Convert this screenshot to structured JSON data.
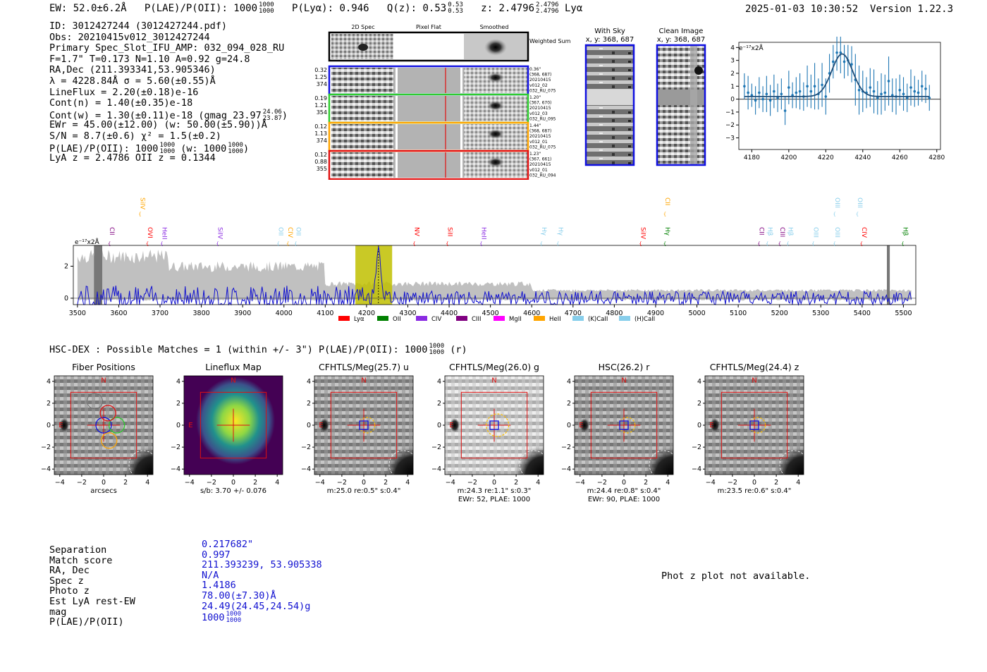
{
  "header": {
    "ew": "EW: 52.0±6.2Å",
    "plae_label": "P(LAE)/P(OII): 1000",
    "plae_hi": "1000",
    "plae_lo": "1000",
    "plya": "P(Lyα): 0.946",
    "qz_label": "Q(z): 0.53",
    "qz_hi": "0.53",
    "qz_lo": "0.53",
    "z_label": "z: 2.4796",
    "z_hi": "2.4796",
    "z_lo": "2.4796",
    "line_name": "Lyα",
    "timestamp": "2025-01-03 10:30:52",
    "version": "Version 1.22.3"
  },
  "info": {
    "lines": [
      "ID: 3012427244 (3012427244.pdf)",
      "Obs: 20210415v012_3012427244",
      "Primary Spec_Slot_IFU_AMP: 032_094_028_RU",
      "F=1.7\"  T=0.173  N=1.10  A=0.92  g=24.8",
      "RA,Dec (211.393341,53.905346)",
      "λ = 4228.84Å  σ = 5.60(±0.55)Å",
      "LineFlux = 2.20(±0.18)e-16",
      "Cont(n) = 1.40(±0.35)e-18",
      "Cont(w) = 1.30(±0.11)e-18 (gmag 23.97",
      "EWr = 45.00(±12.00) (w: 50.00(±5.90))Å",
      "S/N = 8.7(±0.6)  χ² = 1.5(±0.2)",
      "P(LAE)/P(OII): 1000",
      "LyA z = 2.4786  OII z = 0.1344"
    ],
    "gmag_hi": "24.06",
    "gmag_lo": "23.87",
    "plae_hi": "1000",
    "plae_lo": "1000",
    "plae_w": "(w: 1000",
    "plae_w_hi": "1000",
    "plae_w_lo": "1000",
    "plae_w_close": ")"
  },
  "cutouts": {
    "col_headers": [
      "2D Spec",
      "Pixel Flat",
      "Smoothed"
    ],
    "weighted_sum_label": "Weighted Sum",
    "rows": [
      {
        "left": [
          "0.32",
          "1.25",
          "374"
        ],
        "right": [
          "0.36\"",
          "(368, 687)",
          "20210415",
          "v012_02",
          "032_RU_075"
        ],
        "color": "#1010e0"
      },
      {
        "left": [
          "0.19",
          "1.21",
          "354"
        ],
        "right": [
          "1.20\"",
          "(367, 670)",
          "20210415",
          "v012_03",
          "032_RU_095"
        ],
        "color": "#2ecc2e"
      },
      {
        "left": [
          "0.12",
          "1.13",
          "374"
        ],
        "right": [
          "1.44\"",
          "(368, 687)",
          "20210415",
          "v012_01",
          "032_RU_075"
        ],
        "color": "#ffa500"
      },
      {
        "left": [
          "0.12",
          "0.88",
          "355"
        ],
        "right": [
          "1.23\"",
          "(367, 661)",
          "20210415",
          "v012_01",
          "032_RU_094"
        ],
        "color": "#e01010"
      }
    ]
  },
  "sky_panels": {
    "with_sky_title": "With Sky",
    "with_sky_coords": "x, y: 368, 687",
    "clean_title": "Clean Image",
    "clean_coords": "x, y: 368, 687"
  },
  "chart_data": [
    {
      "type": "line",
      "title": "",
      "ylabel": "e⁻¹⁷x2Å",
      "xlim": [
        4173,
        4282
      ],
      "ylim": [
        -3.9,
        4.4
      ],
      "x_ticks": [
        4180,
        4200,
        4220,
        4240,
        4260,
        4280
      ],
      "y_ticks": [
        -3,
        -2,
        -1,
        0,
        1,
        2,
        3,
        4
      ],
      "fit_model": {
        "type": "gaussian",
        "center": 4228.84,
        "sigma": 5.6,
        "amplitude": 3.3,
        "baseline": 0.2
      },
      "x": [
        4176,
        4178,
        4180,
        4182,
        4184,
        4186,
        4188,
        4190,
        4192,
        4194,
        4196,
        4198,
        4200,
        4202,
        4204,
        4206,
        4208,
        4210,
        4212,
        4214,
        4216,
        4218,
        4220,
        4222,
        4224,
        4226,
        4228,
        4230,
        4232,
        4234,
        4236,
        4238,
        4240,
        4242,
        4244,
        4246,
        4248,
        4250,
        4252,
        4254,
        4256,
        4258,
        4260,
        4262,
        4264,
        4266,
        4268,
        4270,
        4272,
        4274,
        4276
      ],
      "y": [
        1.0,
        0.5,
        0.3,
        -0.1,
        0.5,
        0.0,
        0.4,
        -0.1,
        0.6,
        0.1,
        0.4,
        -0.9,
        0.9,
        0.3,
        0.5,
        0.6,
        0.2,
        1.0,
        0.6,
        1.0,
        0.4,
        1.1,
        0.2,
        2.0,
        2.9,
        3.6,
        3.6,
        2.9,
        3.0,
        2.7,
        1.5,
        0.7,
        0.6,
        0.5,
        0.9,
        0.6,
        0.1,
        0.4,
        0.5,
        1.4,
        0.3,
        0.2,
        0.7,
        0.4,
        0.1,
        0.9,
        0.6,
        0.5,
        1.0,
        0.8,
        0.1
      ],
      "yerr": [
        1.0,
        1.3,
        0.9,
        1.1,
        1.2,
        1.0,
        1.4,
        1.2,
        1.3,
        1.1,
        1.2,
        1.1,
        1.3,
        1.0,
        1.2,
        1.4,
        1.1,
        1.6,
        1.3,
        1.8,
        1.2,
        1.7,
        1.4,
        1.5,
        1.3,
        1.4,
        1.6,
        1.3,
        1.2,
        1.4,
        2.0,
        1.9,
        1.6,
        1.2,
        1.5,
        1.7,
        1.3,
        1.6,
        1.4,
        1.9,
        1.3,
        1.4,
        1.2,
        1.3,
        1.1,
        1.4,
        1.2,
        1.0,
        1.2,
        1.1,
        1.0
      ]
    },
    {
      "type": "line",
      "title": "",
      "ylabel": "e⁻¹⁷x2Å",
      "xlim": [
        3490,
        5530
      ],
      "ylim": [
        -0.4,
        3.3
      ],
      "x_ticks": [
        3500,
        3600,
        3700,
        3800,
        3900,
        4000,
        4100,
        4200,
        4300,
        4400,
        4500,
        4600,
        4700,
        4800,
        4900,
        5000,
        5100,
        5200,
        5300,
        5400,
        5500
      ],
      "y_ticks": [
        0,
        2
      ],
      "highlight_range": [
        4173,
        4262
      ],
      "line_center": 4228.84,
      "line_labels": [
        {
          "text": "CII",
          "x": 3579,
          "row": "low",
          "color": "#800080"
        },
        {
          "text": "SiIV",
          "x": 3653,
          "row": "high",
          "color": "#ffa500"
        },
        {
          "text": "OVI",
          "x": 3671,
          "row": "low",
          "color": "#ff0000"
        },
        {
          "text": "HeII",
          "x": 3706,
          "row": "low",
          "color": "#8a2be2"
        },
        {
          "text": "SiIV",
          "x": 3841,
          "row": "low",
          "color": "#8a2be2"
        },
        {
          "text": "OII",
          "x": 3988,
          "row": "low",
          "color": "#87ceeb"
        },
        {
          "text": "CIV",
          "x": 4011,
          "row": "low",
          "color": "#ffa500"
        },
        {
          "text": "OII",
          "x": 4030,
          "row": "low",
          "color": "#87ceeb"
        },
        {
          "text": "NV",
          "x": 4317,
          "row": "low",
          "color": "#ff0000"
        },
        {
          "text": "SiII",
          "x": 4397,
          "row": "low",
          "color": "#ff0000"
        },
        {
          "text": "HeII",
          "x": 4479,
          "row": "low",
          "color": "#8a2be2"
        },
        {
          "text": "Hγ",
          "x": 4625,
          "row": "low",
          "color": "#87ceeb"
        },
        {
          "text": "Hγ",
          "x": 4665,
          "row": "low",
          "color": "#87ceeb"
        },
        {
          "text": "SiIV",
          "x": 4865,
          "row": "low",
          "color": "#ff0000"
        },
        {
          "text": "CII",
          "x": 4924,
          "row": "high",
          "color": "#ffa500"
        },
        {
          "text": "Hγ",
          "x": 4924,
          "row": "low",
          "color": "#008000"
        },
        {
          "text": "CII",
          "x": 5152,
          "row": "low",
          "color": "#800080"
        },
        {
          "text": "Hβ",
          "x": 5172,
          "row": "low",
          "color": "#87ceeb"
        },
        {
          "text": "CIII",
          "x": 5202,
          "row": "low",
          "color": "#800080"
        },
        {
          "text": "Hβ",
          "x": 5222,
          "row": "low",
          "color": "#87ceeb"
        },
        {
          "text": "OIII",
          "x": 5283,
          "row": "low",
          "color": "#87ceeb"
        },
        {
          "text": "OIII",
          "x": 5335,
          "row": "high",
          "color": "#87ceeb"
        },
        {
          "text": "OIII",
          "x": 5335,
          "row": "low",
          "color": "#87ceeb"
        },
        {
          "text": "OIII",
          "x": 5390,
          "row": "high",
          "color": "#87ceeb"
        },
        {
          "text": "CIV",
          "x": 5400,
          "row": "low",
          "color": "#ff0000"
        },
        {
          "text": "Hβ",
          "x": 5500,
          "row": "low",
          "color": "#008000"
        }
      ],
      "legend": [
        {
          "label": "Lyα",
          "color": "#ff0000"
        },
        {
          "label": "OII",
          "color": "#008000"
        },
        {
          "label": "CIV",
          "color": "#8a2be2"
        },
        {
          "label": "CIII",
          "color": "#800080"
        },
        {
          "label": "MgII",
          "color": "#ff00ff"
        },
        {
          "label": "HeII",
          "color": "#ffa500"
        },
        {
          "label": "(K)CaII",
          "color": "#87ceeb"
        },
        {
          "label": "(H)CaII",
          "color": "#87ceeb"
        }
      ]
    }
  ],
  "hsc": {
    "title": "HSC-DEX : Possible Matches = 1 (within +/- 3\")  P(LAE)/P(OII): 1000",
    "plae_hi": "1000",
    "plae_lo": "1000",
    "title_suffix": "(r)",
    "panels": [
      {
        "title": "Fiber Positions",
        "cap1": "arcsecs",
        "cap2": ""
      },
      {
        "title": "Lineflux Map",
        "cap1": "s/b: 3.70 +/- 0.076",
        "cap2": ""
      },
      {
        "title": "CFHTLS/Meg(25.7) u",
        "cap1": "m:25.0  re:0.5\"  s:0.4\"",
        "cap2": ""
      },
      {
        "title": "CFHTLS/Meg(26.0) g",
        "cap1": "m:24.3  re:1.1\"  s:0.3\"",
        "cap2": "EWr: 52, PLAE: 1000"
      },
      {
        "title": "HSC(26.2) r",
        "cap1": "m:24.4  re:0.8\"  s:0.4\"",
        "cap2": "EWr: 90, PLAE: 1000"
      },
      {
        "title": "CFHTLS/Meg(24.4) z",
        "cap1": "m:23.5  re:0.6\"  s:0.4\"",
        "cap2": ""
      }
    ],
    "ticks": [
      "−4",
      "−2",
      "0",
      "2",
      "4"
    ],
    "north": "N",
    "east": "E"
  },
  "match": {
    "labels": [
      "Separation",
      "Match score",
      "RA, Dec",
      "Spec z",
      "Photo z",
      "Est LyA rest-EW",
      "mag",
      "P(LAE)/P(OII)"
    ],
    "values": [
      "0.217682\"",
      "0.997",
      "211.393239, 53.905338",
      "N/A",
      "1.4186",
      "78.00(±7.30)Å",
      "24.49(24.45,24.54)g",
      "1000"
    ],
    "plae_hi": "1000",
    "plae_lo": "1000",
    "photz_message": "Phot z plot not available."
  },
  "colors": {
    "spectrum": "#1010d0",
    "error_band": "#c0c0c0",
    "highlight": "#bfbf00",
    "fit": "#1f4e79",
    "points": "#1f77b4"
  }
}
